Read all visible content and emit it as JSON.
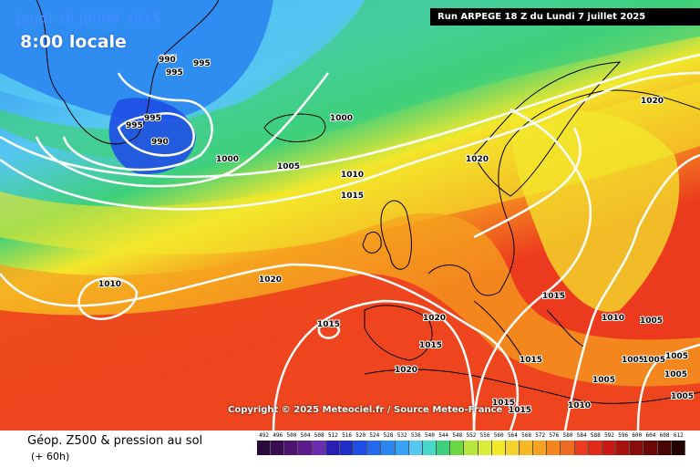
{
  "map": {
    "date_label": "Jeudi 10 juillet 2025",
    "time_label": "8:00 locale",
    "run_label": "Run ARPEGE 18 Z du Lundi 7 juillet 2025",
    "copyright": "Copyright © 2025 Meteociel.fr / Source Meteo-France",
    "isobar_labels": [
      "995",
      "990",
      "995",
      "995",
      "995",
      "990",
      "995",
      "1000",
      "1000",
      "1005",
      "1010",
      "1015",
      "1020",
      "1020",
      "1010",
      "1020",
      "1015",
      "1020",
      "1015",
      "1020",
      "1015",
      "1015",
      "1010",
      "1005",
      "1015",
      "1015",
      "1010",
      "1005",
      "1005",
      "1005",
      "1005",
      "1005",
      "1005"
    ],
    "colors": {
      "deep_blue": "#1f4ee6",
      "blue": "#2b86f0",
      "cyan": "#56c7f2",
      "green": "#3ed07a",
      "lime": "#b8e63c",
      "yellow": "#f3e82c",
      "orange": "#f6a21f",
      "red": "#ec3a1f",
      "isobar": "#ffffff",
      "coastline": "#000000"
    }
  },
  "footer": {
    "title": "Géop. Z500 & pression au sol",
    "subtitle": "(+ 60h)"
  },
  "legend": {
    "ticks": [
      "492",
      "496",
      "500",
      "504",
      "508",
      "512",
      "516",
      "520",
      "524",
      "528",
      "532",
      "536",
      "540",
      "544",
      "548",
      "552",
      "556",
      "560",
      "564",
      "568",
      "572",
      "576",
      "580",
      "584",
      "588",
      "592",
      "596",
      "600",
      "604",
      "608",
      "612"
    ],
    "colors": [
      "#2a0a3a",
      "#3a0d52",
      "#4d1470",
      "#5e1b8e",
      "#6a2db0",
      "#2a1fb5",
      "#1f2ec8",
      "#1f4ee6",
      "#2468ee",
      "#2b86f0",
      "#3aa2f3",
      "#56c7f2",
      "#48d8c8",
      "#3ed07a",
      "#6cd845",
      "#b8e63c",
      "#dced38",
      "#f3e82c",
      "#f6d22a",
      "#f6b824",
      "#f6a21f",
      "#f4861d",
      "#ef6a1e",
      "#ec3a1f",
      "#df2a18",
      "#c81a12",
      "#a8120e",
      "#8a0c0c",
      "#6d0808",
      "#4a0404",
      "#240000"
    ]
  }
}
